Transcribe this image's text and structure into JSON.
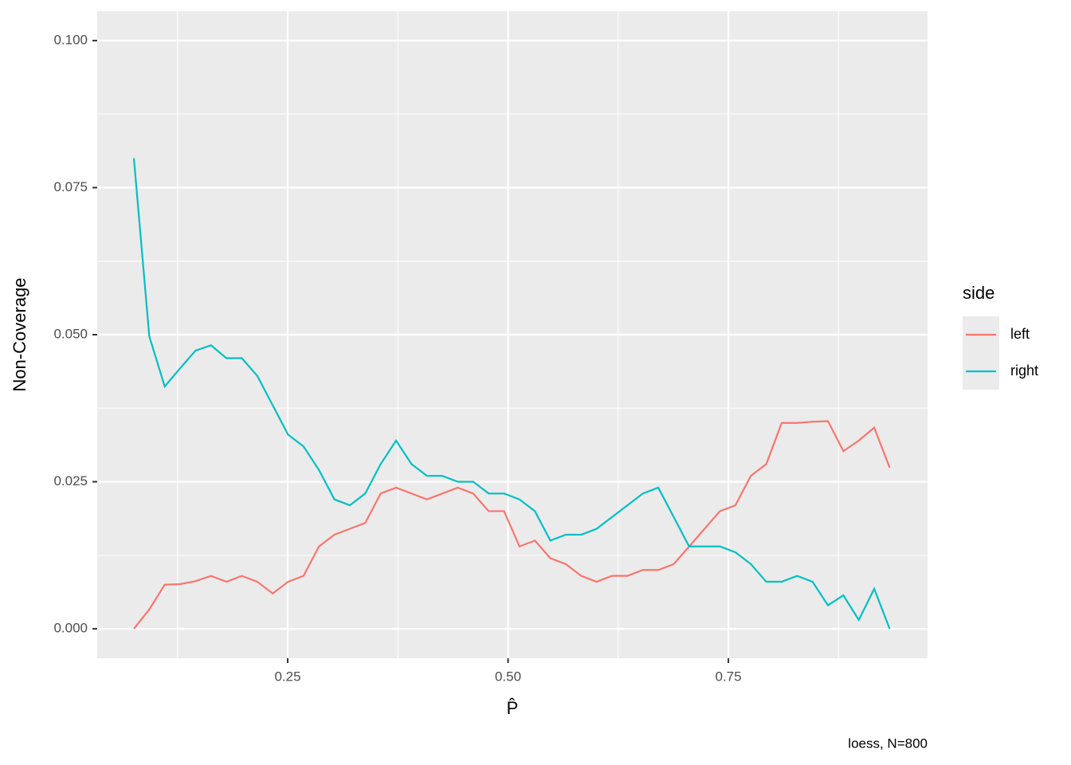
{
  "chart_data": {
    "type": "line",
    "x_label": "P̂",
    "y_label": "Non-Coverage",
    "caption": "loess, N=800",
    "legend_title": "side",
    "x": [
      0.0755,
      0.093,
      0.1105,
      0.128,
      0.1455,
      0.163,
      0.1805,
      0.198,
      0.2155,
      0.233,
      0.2505,
      0.268,
      0.2855,
      0.303,
      0.3205,
      0.338,
      0.3555,
      0.373,
      0.3905,
      0.408,
      0.4255,
      0.443,
      0.4605,
      0.478,
      0.4955,
      0.513,
      0.5305,
      0.548,
      0.5655,
      0.583,
      0.6005,
      0.618,
      0.6355,
      0.653,
      0.6705,
      0.688,
      0.7055,
      0.723,
      0.7405,
      0.758,
      0.7755,
      0.793,
      0.8105,
      0.828,
      0.8455,
      0.863,
      0.8805,
      0.898,
      0.9155,
      0.933
    ],
    "series": [
      {
        "name": "left",
        "color": "#F8766D",
        "values": [
          0,
          0.0033,
          0.0075,
          0.0076,
          0.0081,
          0.009,
          0.008,
          0.009,
          0.008,
          0.006,
          0.008,
          0.009,
          0.014,
          0.016,
          0.017,
          0.018,
          0.023,
          0.024,
          0.023,
          0.022,
          0.023,
          0.024,
          0.023,
          0.02,
          0.02,
          0.014,
          0.015,
          0.012,
          0.011,
          0.009,
          0.008,
          0.009,
          0.009,
          0.01,
          0.01,
          0.011,
          0.014,
          0.017,
          0.02,
          0.021,
          0.026,
          0.028,
          0.035,
          0.035,
          0.0352,
          0.0353,
          0.0302,
          0.032,
          0.0342,
          0.0274
        ]
      },
      {
        "name": "right",
        "color": "#00BFC4",
        "values": [
          0.08,
          0.0497,
          0.0412,
          0.0443,
          0.0473,
          0.0482,
          0.046,
          0.046,
          0.043,
          0.038,
          0.033,
          0.031,
          0.027,
          0.022,
          0.021,
          0.023,
          0.028,
          0.032,
          0.028,
          0.026,
          0.026,
          0.025,
          0.025,
          0.023,
          0.023,
          0.022,
          0.02,
          0.015,
          0.016,
          0.016,
          0.017,
          0.019,
          0.021,
          0.023,
          0.024,
          0.019,
          0.014,
          0.014,
          0.014,
          0.013,
          0.011,
          0.008,
          0.008,
          0.009,
          0.008,
          0.004,
          0.0057,
          0.0015,
          0.0068,
          0
        ]
      }
    ],
    "xlim": [
      0.0339,
      0.976
    ],
    "ylim": [
      -0.005,
      0.105
    ],
    "xticks": [
      {
        "value": 0.25,
        "label": "0.25"
      },
      {
        "value": 0.5,
        "label": "0.50"
      },
      {
        "value": 0.75,
        "label": "0.75"
      }
    ],
    "yticks": [
      {
        "value": 0,
        "label": "0.000"
      },
      {
        "value": 0.025,
        "label": "0.025"
      },
      {
        "value": 0.05,
        "label": "0.050"
      },
      {
        "value": 0.075,
        "label": "0.075"
      },
      {
        "value": 0.1,
        "label": "0.100"
      }
    ],
    "grid": true
  }
}
